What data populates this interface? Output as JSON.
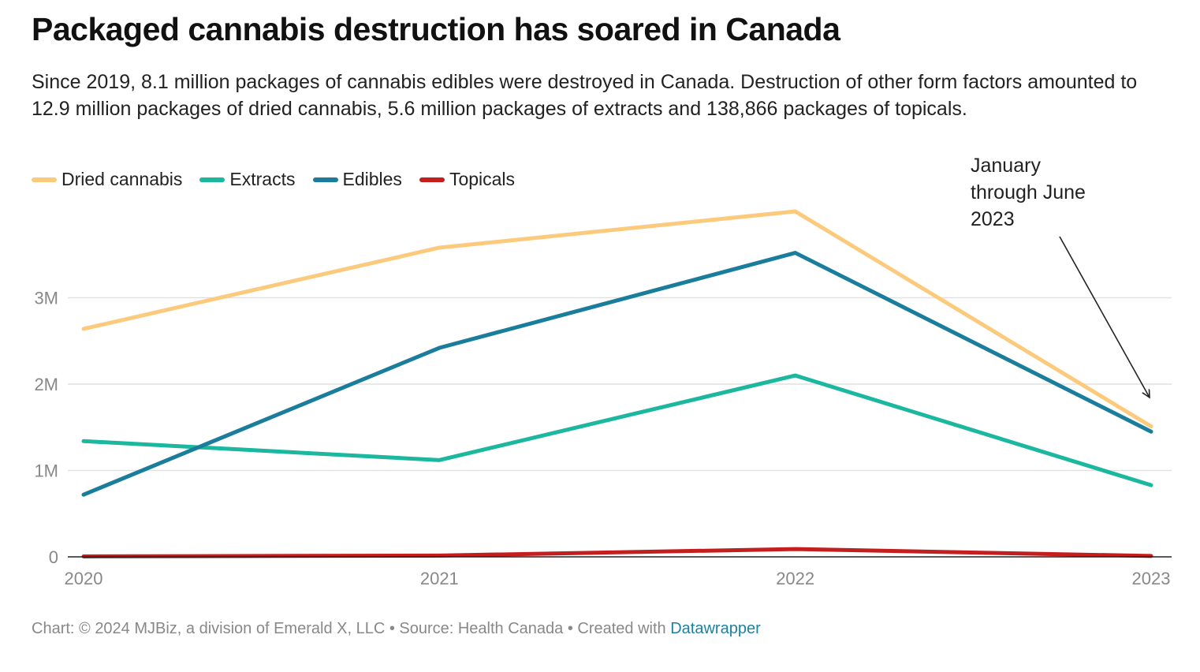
{
  "header": {
    "title": "Packaged cannabis destruction has soared in Canada",
    "subtitle": "Since 2019, 8.1 million packages of cannabis edibles were destroyed in Canada. Destruction of other form factors amounted to 12.9 million packages of dried cannabis, 5.6 million packages of extracts and 138,866 packages of topicals."
  },
  "footer": {
    "credit": "Chart: © 2024 MJBiz, a division of Emerald X, LLC • Source: Health Canada • Created with ",
    "tool_link": "Datawrapper"
  },
  "colors": {
    "dried": "#fcca7c",
    "extracts": "#1bb79e",
    "edibles": "#1a7d9c",
    "topicals": "#c41f1f",
    "grid": "#e1e1e1",
    "axis": "#222222",
    "tick_text": "#888888"
  },
  "chart_data": {
    "type": "line",
    "x": [
      "2020",
      "2021",
      "2022",
      "2023"
    ],
    "x_tick_labels": [
      "2020",
      "2021",
      "2022",
      "2023"
    ],
    "y_ticks": [
      0,
      1000000,
      2000000,
      3000000
    ],
    "y_tick_labels": [
      "0",
      "1M",
      "2M",
      "3M"
    ],
    "ylim": [
      0,
      4000000
    ],
    "grid": true,
    "legend_position": "top-left",
    "series": [
      {
        "name": "Dried cannabis",
        "color": "#fcca7c",
        "values": [
          2640000,
          3580000,
          4000000,
          1510000
        ]
      },
      {
        "name": "Extracts",
        "color": "#1bb79e",
        "values": [
          1340000,
          1120000,
          2100000,
          830000
        ]
      },
      {
        "name": "Edibles",
        "color": "#1a7d9c",
        "values": [
          720000,
          2420000,
          3520000,
          1450000
        ]
      },
      {
        "name": "Topicals",
        "color": "#c41f1f",
        "values": [
          5000,
          15000,
          90000,
          10000
        ]
      }
    ],
    "annotations": [
      {
        "lines": [
          "January",
          "through June",
          "2023"
        ],
        "target_x": "2023"
      }
    ]
  }
}
